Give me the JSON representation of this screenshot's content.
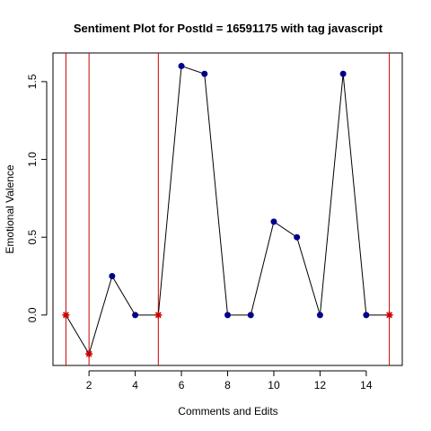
{
  "chart_data": {
    "type": "line",
    "title": "Sentiment Plot for PostId =  16591175  with tag  javascript",
    "xlabel": "Comments and Edits",
    "ylabel": "Emotional Valence",
    "xlim": [
      0.44,
      15.56
    ],
    "ylim": [
      -0.324,
      1.684
    ],
    "x_ticks": [
      2,
      4,
      6,
      8,
      10,
      12,
      14
    ],
    "y_ticks": [
      0.0,
      0.5,
      1.0,
      1.5
    ],
    "x_tick_labels": [
      "2",
      "4",
      "6",
      "8",
      "10",
      "12",
      "14"
    ],
    "y_tick_labels": [
      "0.0",
      "0.5",
      "1.0",
      "1.5"
    ],
    "series": [
      {
        "x": [
          1,
          2,
          3,
          4,
          5,
          6,
          7,
          8,
          9,
          10,
          11,
          12,
          13,
          14,
          15
        ],
        "y": [
          0.0,
          -0.25,
          0.25,
          0.0,
          0.0,
          1.6,
          1.55,
          0.0,
          0.0,
          0.6,
          0.5,
          0.0,
          1.55,
          0.0,
          0.0
        ]
      }
    ],
    "highlight_x": [
      1,
      2,
      5,
      15
    ],
    "grid": false,
    "colors": {
      "line": "#000000",
      "point": "#00008B",
      "highlight": "#CC0000",
      "vline": "#CC0000"
    }
  }
}
